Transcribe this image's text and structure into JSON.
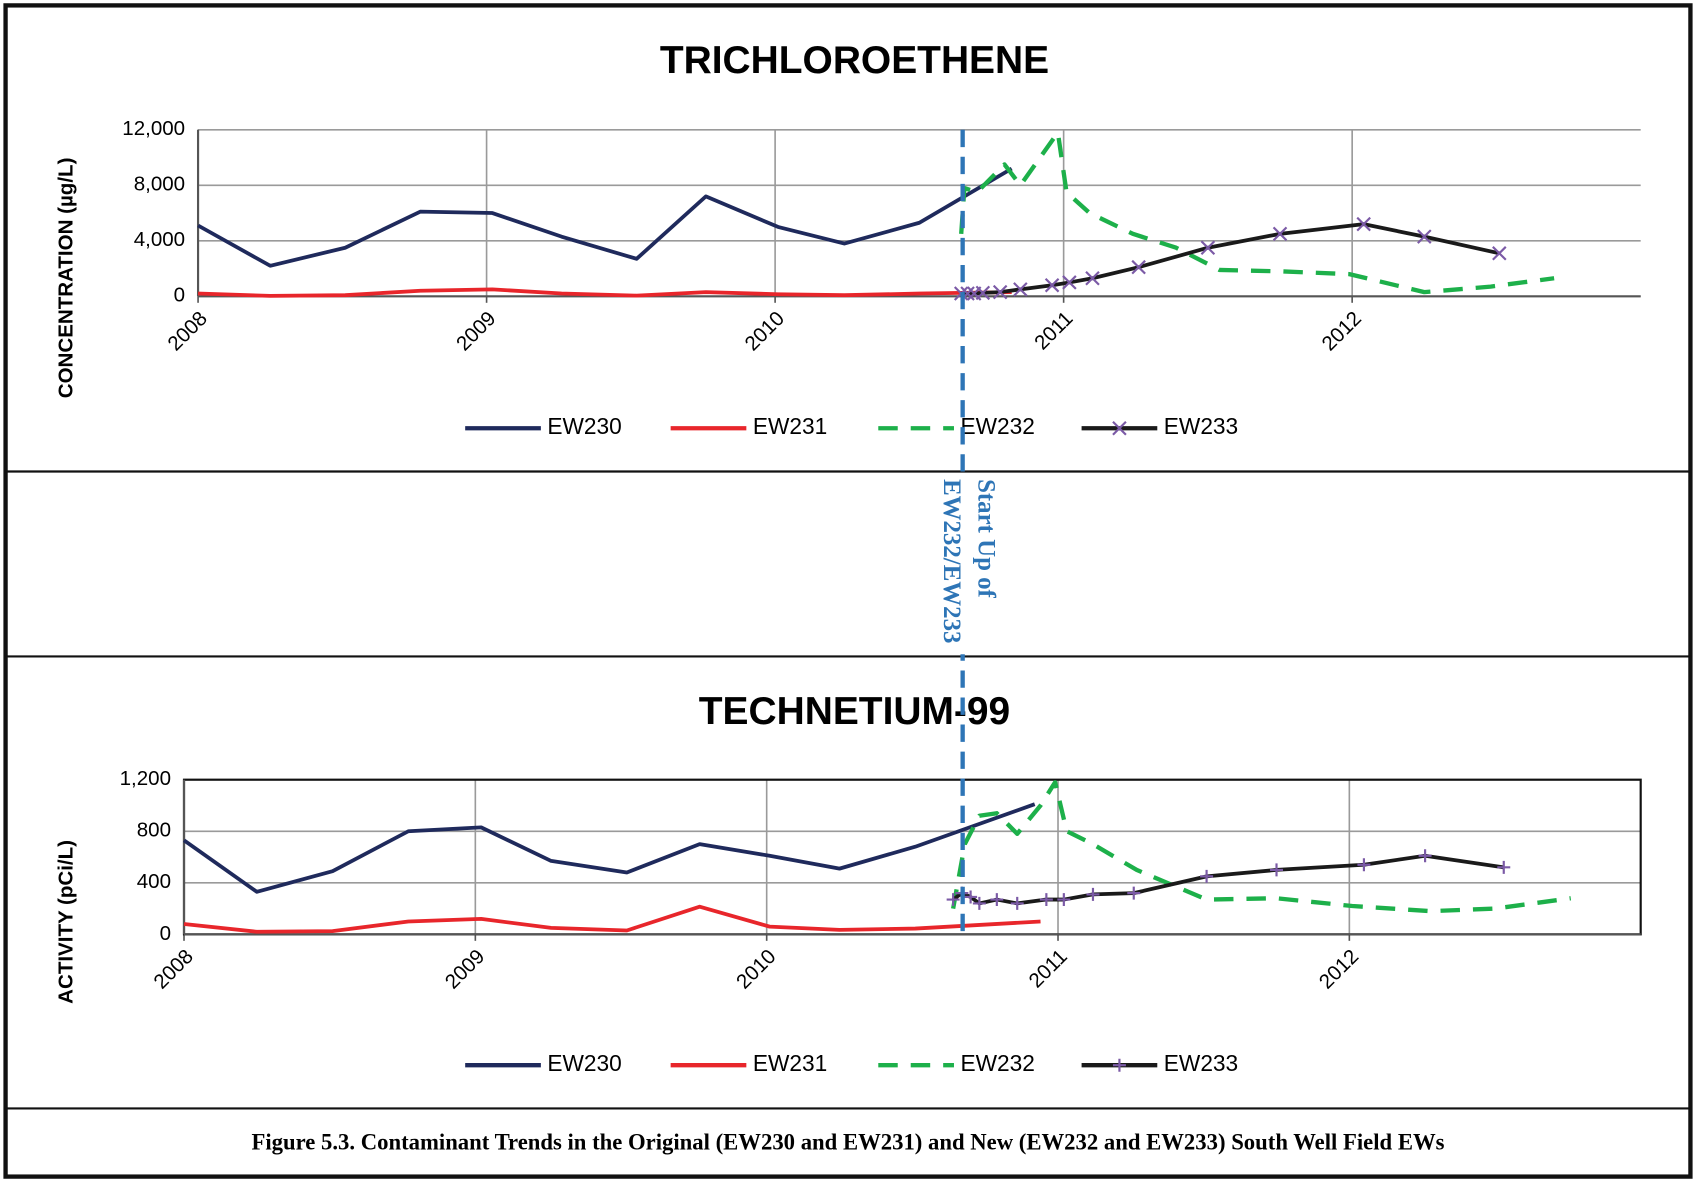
{
  "chart_data": [
    {
      "type": "line",
      "title": "TRICHLOROETHENE",
      "y_label": "CONCENTRATION (µg/L)",
      "xlim": [
        2008,
        2013
      ],
      "xticks": [
        2008,
        2009,
        2010,
        2011,
        2012
      ],
      "ylim": [
        0,
        12000
      ],
      "yticks": [
        0,
        {
          "value": 4000,
          "label": "4,000"
        },
        {
          "value": 8000,
          "label": "8,000"
        },
        {
          "value": 12000,
          "label": "12,000"
        }
      ],
      "grid": true,
      "legend": "bottom",
      "series": [
        {
          "name": "EW230",
          "color": "#1f2a5c",
          "dash": false,
          "x": [
            2008.0,
            2008.25,
            2008.51,
            2008.77,
            2009.02,
            2009.26,
            2009.52,
            2009.76,
            2010.01,
            2010.24,
            2010.5,
            2010.82
          ],
          "values": [
            5100,
            2200,
            3500,
            6100,
            6000,
            4300,
            2700,
            7200,
            5000,
            3800,
            5300,
            9200
          ]
        },
        {
          "name": "EW231",
          "color": "#e8262b",
          "dash": false,
          "x": [
            2008.0,
            2008.25,
            2008.51,
            2008.77,
            2009.02,
            2009.26,
            2009.52,
            2009.76,
            2010.01,
            2010.24,
            2010.5,
            2010.82
          ],
          "values": [
            200,
            30,
            80,
            400,
            500,
            200,
            50,
            300,
            150,
            80,
            200,
            300
          ]
        },
        {
          "name": "EW232",
          "color": "#1db04a",
          "dash": true,
          "x": [
            2010.645,
            2010.656,
            2010.7,
            2010.795,
            2010.85,
            2010.98,
            2011.01,
            2011.09,
            2011.24,
            2011.39,
            2011.54,
            2011.75,
            2011.99,
            2012.25,
            2012.48,
            2012.7
          ],
          "values": [
            4500,
            7800,
            7500,
            9500,
            8000,
            11800,
            7500,
            6000,
            4500,
            3500,
            1900,
            1800,
            1600,
            300,
            700,
            1300
          ]
        },
        {
          "name": "EW233",
          "color": "#1a1a1a",
          "dash": false,
          "marker": "x",
          "marker_color": "#7b5aa6",
          "x": [
            2010.645,
            2010.667,
            2010.69,
            2010.72,
            2010.78,
            2010.85,
            2010.96,
            2011.02,
            2011.1,
            2011.26,
            2011.5,
            2011.75,
            2012.04,
            2012.25,
            2012.51
          ],
          "values": [
            200,
            200,
            200,
            250,
            300,
            500,
            800,
            1000,
            1300,
            2100,
            3500,
            4500,
            5200,
            4300,
            3100
          ]
        }
      ]
    },
    {
      "type": "line",
      "title": "TECHNETIUM-99",
      "y_label": "ACTIVITY (pCi/L)",
      "xlim": [
        2008,
        2013
      ],
      "xticks": [
        2008,
        2009,
        2010,
        2011,
        2012
      ],
      "ylim": [
        0,
        1200
      ],
      "yticks": [
        0,
        400,
        800,
        {
          "value": 1200,
          "label": "1,200"
        }
      ],
      "grid": true,
      "legend": "bottom",
      "series": [
        {
          "name": "EW230",
          "color": "#1f2a5c",
          "dash": false,
          "x": [
            2008.0,
            2008.25,
            2008.51,
            2008.77,
            2009.02,
            2009.26,
            2009.52,
            2009.77,
            2010.01,
            2010.25,
            2010.51,
            2010.92
          ],
          "values": [
            730,
            330,
            490,
            800,
            830,
            570,
            480,
            700,
            610,
            510,
            680,
            1010
          ]
        },
        {
          "name": "EW231",
          "color": "#e8262b",
          "dash": false,
          "x": [
            2008.0,
            2008.25,
            2008.51,
            2008.77,
            2009.02,
            2009.26,
            2009.52,
            2009.77,
            2010.01,
            2010.25,
            2010.51,
            2010.94
          ],
          "values": [
            80,
            20,
            25,
            100,
            120,
            50,
            30,
            215,
            60,
            35,
            45,
            100
          ]
        },
        {
          "name": "EW232",
          "color": "#1db04a",
          "dash": true,
          "x": [
            2010.64,
            2010.68,
            2010.73,
            2010.79,
            2010.86,
            2010.94,
            2010.99,
            2011.03,
            2011.12,
            2011.27,
            2011.51,
            2011.75,
            2012.01,
            2012.28,
            2012.5,
            2012.76
          ],
          "values": [
            200,
            700,
            920,
            940,
            780,
            1000,
            1180,
            800,
            700,
            500,
            270,
            280,
            220,
            180,
            200,
            280
          ]
        },
        {
          "name": "EW233",
          "color": "#1a1a1a",
          "dash": false,
          "marker": "plus",
          "marker_color": "#7b5aa6",
          "x": [
            2010.64,
            2010.67,
            2010.7,
            2010.73,
            2010.79,
            2010.86,
            2010.96,
            2011.02,
            2011.12,
            2011.26,
            2011.51,
            2011.75,
            2012.05,
            2012.26,
            2012.53
          ],
          "values": [
            270,
            320,
            290,
            240,
            270,
            240,
            270,
            270,
            310,
            320,
            450,
            500,
            540,
            610,
            520
          ]
        }
      ]
    }
  ],
  "annotation": {
    "lines": [
      "Start Up of",
      "EW232/EW233"
    ],
    "x": 2010.65
  },
  "caption": "Figure 5.3. Contaminant Trends in the Original (EW230 and EW231) and New (EW232 and EW233) South Well Field EWs"
}
